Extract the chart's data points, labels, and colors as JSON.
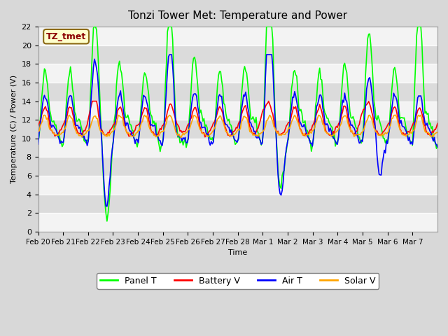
{
  "title": "Tonzi Tower Met: Temperature and Power",
  "ylabel": "Temperature (C) / Power (V)",
  "xlabel": "Time",
  "annotation": "TZ_tmet",
  "ylim": [
    0,
    22
  ],
  "yticks": [
    0,
    2,
    4,
    6,
    8,
    10,
    12,
    14,
    16,
    18,
    20,
    22
  ],
  "xtick_labels": [
    "Feb 20",
    "Feb 21",
    "Feb 22",
    "Feb 23",
    "Feb 24",
    "Feb 25",
    "Feb 26",
    "Feb 27",
    "Feb 28",
    "Mar 1",
    "Mar 2",
    "Mar 3",
    "Mar 4",
    "Mar 5",
    "Mar 6",
    "Mar 7"
  ],
  "bg_color": "#e8e8e8",
  "plot_bg": "#e8e8e8",
  "line_colors": {
    "panel": "#00ff00",
    "battery": "#ff0000",
    "air": "#0000ff",
    "solar": "#ffa500"
  },
  "legend_labels": [
    "Panel T",
    "Battery V",
    "Air T",
    "Solar V"
  ],
  "legend_colors": [
    "#00ff00",
    "#ff0000",
    "#0000ff",
    "#ffa500"
  ]
}
